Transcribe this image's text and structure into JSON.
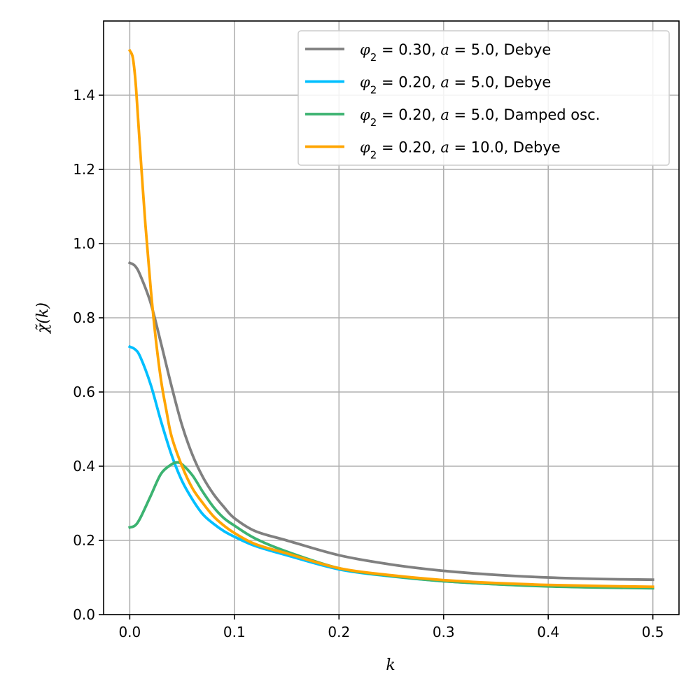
{
  "chart_data": {
    "type": "line",
    "xlabel": "k",
    "ylabel": "χ̃(k)",
    "xlim": [
      -0.025,
      0.525
    ],
    "ylim": [
      0.0,
      1.6
    ],
    "xticks": [
      0.0,
      0.1,
      0.2,
      0.3,
      0.4,
      0.5
    ],
    "xtick_labels": [
      "0.0",
      "0.1",
      "0.2",
      "0.3",
      "0.4",
      "0.5"
    ],
    "yticks": [
      0.0,
      0.2,
      0.4,
      0.6,
      0.8,
      1.0,
      1.2,
      1.4
    ],
    "ytick_labels": [
      "0.0",
      "0.2",
      "0.4",
      "0.6",
      "0.8",
      "1.0",
      "1.2",
      "1.4"
    ],
    "grid": true,
    "legend_position": "top-right",
    "series": [
      {
        "name": "φ₂ = 0.30, a = 5.0, Debye",
        "legend": {
          "phi": "0.30",
          "a": "5.0",
          "model": "Debye"
        },
        "color": "#808080",
        "x": [
          0.0,
          0.005,
          0.01,
          0.02,
          0.03,
          0.04,
          0.05,
          0.06,
          0.07,
          0.08,
          0.09,
          0.1,
          0.12,
          0.15,
          0.2,
          0.25,
          0.3,
          0.35,
          0.4,
          0.45,
          0.5
        ],
        "y": [
          0.948,
          0.94,
          0.915,
          0.84,
          0.73,
          0.615,
          0.51,
          0.43,
          0.37,
          0.325,
          0.29,
          0.26,
          0.225,
          0.2,
          0.16,
          0.135,
          0.118,
          0.107,
          0.1,
          0.096,
          0.094
        ]
      },
      {
        "name": "φ₂ = 0.20, a = 5.0, Debye",
        "legend": {
          "phi": "0.20",
          "a": "5.0",
          "model": "Debye"
        },
        "color": "#00bfff",
        "x": [
          0.0,
          0.005,
          0.01,
          0.02,
          0.03,
          0.04,
          0.05,
          0.06,
          0.07,
          0.08,
          0.09,
          0.1,
          0.12,
          0.15,
          0.2,
          0.25,
          0.3,
          0.35,
          0.4,
          0.45,
          0.5
        ],
        "y": [
          0.722,
          0.715,
          0.695,
          0.62,
          0.52,
          0.43,
          0.36,
          0.31,
          0.27,
          0.245,
          0.225,
          0.21,
          0.185,
          0.16,
          0.122,
          0.103,
          0.09,
          0.082,
          0.077,
          0.074,
          0.072
        ]
      },
      {
        "name": "φ₂ = 0.20, a = 5.0, Damped osc.",
        "legend": {
          "phi": "0.20",
          "a": "5.0",
          "model": "Damped osc."
        },
        "color": "#3cb371",
        "x": [
          0.0,
          0.005,
          0.01,
          0.02,
          0.03,
          0.04,
          0.045,
          0.05,
          0.06,
          0.07,
          0.08,
          0.09,
          0.1,
          0.12,
          0.15,
          0.2,
          0.25,
          0.3,
          0.35,
          0.4,
          0.45,
          0.5
        ],
        "y": [
          0.235,
          0.24,
          0.26,
          0.32,
          0.38,
          0.405,
          0.41,
          0.405,
          0.375,
          0.33,
          0.29,
          0.26,
          0.24,
          0.205,
          0.17,
          0.125,
          0.104,
          0.09,
          0.082,
          0.076,
          0.073,
          0.071
        ]
      },
      {
        "name": "φ₂ = 0.20, a = 10.0, Debye",
        "legend": {
          "phi": "0.20",
          "a": "10.0",
          "model": "Debye"
        },
        "color": "#ffa500",
        "x": [
          0.0,
          0.003,
          0.006,
          0.01,
          0.015,
          0.02,
          0.025,
          0.03,
          0.035,
          0.04,
          0.05,
          0.06,
          0.07,
          0.08,
          0.09,
          0.1,
          0.12,
          0.15,
          0.2,
          0.25,
          0.3,
          0.35,
          0.4,
          0.45,
          0.5
        ],
        "y": [
          1.52,
          1.5,
          1.42,
          1.25,
          1.05,
          0.88,
          0.74,
          0.63,
          0.55,
          0.48,
          0.4,
          0.34,
          0.3,
          0.265,
          0.24,
          0.22,
          0.19,
          0.165,
          0.125,
          0.106,
          0.093,
          0.085,
          0.08,
          0.077,
          0.075
        ]
      }
    ]
  }
}
